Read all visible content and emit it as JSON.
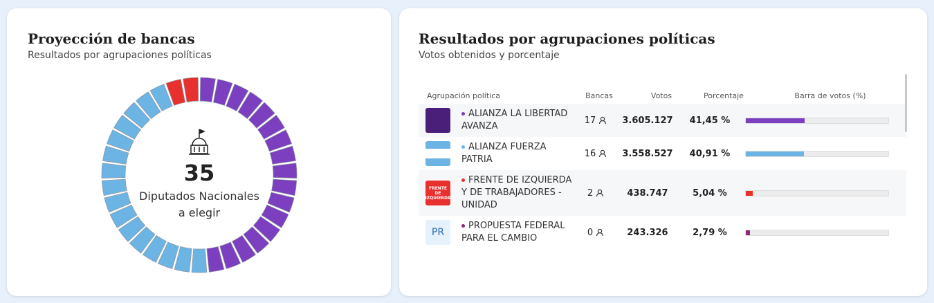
{
  "left": {
    "title": "Proyección de bancas",
    "subtitle": "Resultados por agrupaciones políticas",
    "total": 35,
    "center_label": [
      "Diputados Nacionales",
      "a elegir"
    ]
  },
  "right": {
    "title": "Resultados por agrupaciones políticas",
    "subtitle": "Votos obtenidos y porcentaje",
    "columns": [
      "Agrupación política",
      "Bancas",
      "Votos",
      "Porcentaje",
      "Barra de votos (%)"
    ],
    "rows": [
      {
        "name": "ALIANZA LA LIBERTAD AVANZA",
        "color": "#7b3fbf",
        "bancas": 17,
        "votes": "3.605.127",
        "percentage": {
          "value": 41.45,
          "label": "41,45 %"
        }
      },
      {
        "name": "ALIANZA FUERZA PATRIA",
        "color": "#6cb4e4",
        "bancas": 16,
        "votes": "3.558.527",
        "percentage": {
          "value": 40.91,
          "label": "40,91 %"
        }
      },
      {
        "name": "FRENTE DE IZQUIERDA Y DE TRABAJADORES - UNIDAD",
        "color": "#e8302f",
        "logo": "FRENTE DE IZQUIERDA",
        "bancas": 2,
        "votes": "438.747",
        "percentage": {
          "value": 5.04,
          "label": "5,04 %"
        }
      },
      {
        "name": "PROPUESTA FEDERAL PARA EL CAMBIO",
        "color": "#8e2a7a",
        "logo": "PR",
        "bancas": 0,
        "votes": "243.326",
        "percentage": {
          "value": 2.79,
          "label": "2,79 %"
        }
      }
    ]
  }
}
